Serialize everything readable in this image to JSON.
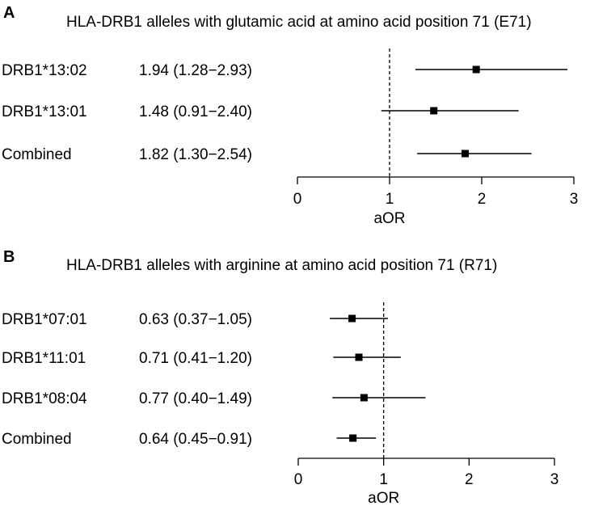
{
  "chart_data": [
    {
      "type": "forest",
      "panel": "A",
      "title": "HLA-DRB1 alleles with glutamic acid at amino acid position 71 (E71)",
      "xlabel": "aOR",
      "xlim": [
        0,
        3
      ],
      "ticks": [
        0,
        1,
        2,
        3
      ],
      "reference_line": 1,
      "rows": [
        {
          "label": "DRB1*13:02",
          "estimate_text": "1.94 (1.28−2.93)",
          "or": 1.94,
          "lo": 1.28,
          "hi": 2.93
        },
        {
          "label": "DRB1*13:01",
          "estimate_text": "1.48 (0.91−2.40)",
          "or": 1.48,
          "lo": 0.91,
          "hi": 2.4
        },
        {
          "label": "Combined",
          "estimate_text": "1.82 (1.30−2.54)",
          "or": 1.82,
          "lo": 1.3,
          "hi": 2.54
        }
      ]
    },
    {
      "type": "forest",
      "panel": "B",
      "title": "HLA-DRB1 alleles with arginine at amino acid position 71 (R71)",
      "xlabel": "aOR",
      "xlim": [
        0,
        3
      ],
      "ticks": [
        0,
        1,
        2,
        3
      ],
      "reference_line": 1,
      "rows": [
        {
          "label": "DRB1*07:01",
          "estimate_text": "0.63 (0.37−1.05)",
          "or": 0.63,
          "lo": 0.37,
          "hi": 1.05
        },
        {
          "label": "DRB1*11:01",
          "estimate_text": "0.71 (0.41−1.20)",
          "or": 0.71,
          "lo": 0.41,
          "hi": 1.2
        },
        {
          "label": "DRB1*08:04",
          "estimate_text": "0.77 (0.40−1.49)",
          "or": 0.77,
          "lo": 0.4,
          "hi": 1.49
        },
        {
          "label": "Combined",
          "estimate_text": "0.64 (0.45−0.91)",
          "or": 0.64,
          "lo": 0.45,
          "hi": 0.91
        }
      ]
    }
  ]
}
